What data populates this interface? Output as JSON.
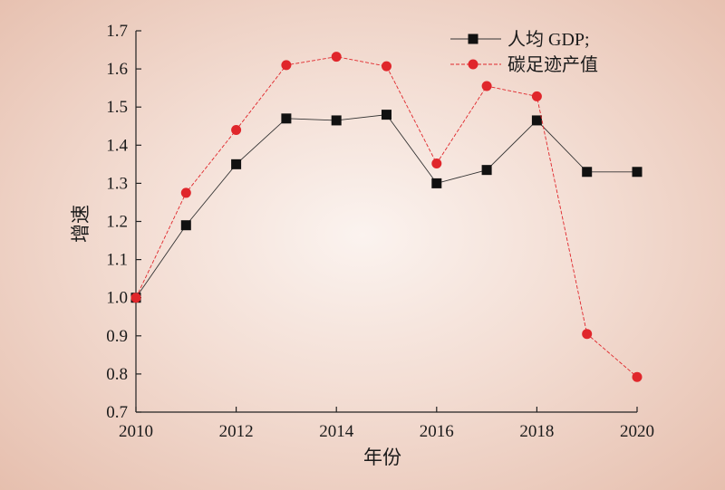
{
  "chart_data": {
    "type": "line",
    "xlabel": "年份",
    "ylabel": "增速",
    "xlim": [
      2010,
      2020
    ],
    "ylim": [
      0.7,
      1.7
    ],
    "x_ticks": [
      2010,
      2012,
      2014,
      2016,
      2018,
      2020
    ],
    "y_ticks": [
      0.7,
      0.8,
      0.9,
      1.0,
      1.1,
      1.2,
      1.3,
      1.4,
      1.5,
      1.6,
      1.7
    ],
    "legend_position": "top-right",
    "x": [
      2010,
      2011,
      2012,
      2013,
      2014,
      2015,
      2016,
      2017,
      2018,
      2019,
      2020
    ],
    "series": [
      {
        "name": "人均 GDP;",
        "marker": "square",
        "color": "#111111",
        "values": [
          1.0,
          1.19,
          1.35,
          1.47,
          1.465,
          1.48,
          1.3,
          1.335,
          1.465,
          1.33,
          1.33
        ]
      },
      {
        "name": "碳足迹产值",
        "marker": "circle",
        "color": "#e0262b",
        "values": [
          1.0,
          1.275,
          1.44,
          1.61,
          1.632,
          1.607,
          1.352,
          1.555,
          1.528,
          0.905,
          0.792
        ]
      }
    ]
  }
}
